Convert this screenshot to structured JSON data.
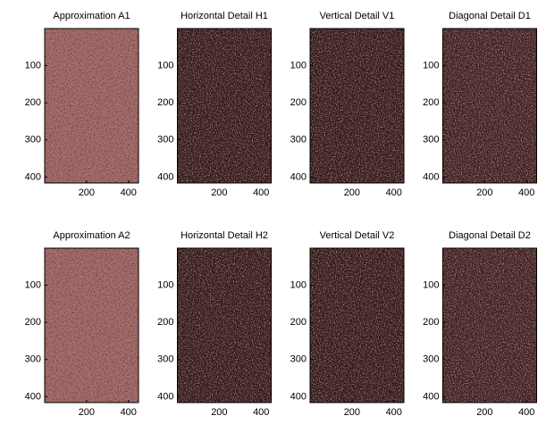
{
  "chart_data": [
    {
      "type": "image",
      "title": "Approximation A1",
      "color": "#9a6767",
      "xlim": [
        0,
        448
      ],
      "ylim": [
        0,
        416
      ],
      "y_reversed": true,
      "xticks": [
        200,
        400
      ],
      "yticks": [
        100,
        200,
        300,
        400
      ]
    },
    {
      "type": "image",
      "title": "Horizontal Detail H1",
      "color": "#2e1818",
      "xlim": [
        0,
        448
      ],
      "ylim": [
        0,
        416
      ],
      "y_reversed": true,
      "xticks": [
        200,
        400
      ],
      "yticks": [
        100,
        200,
        300,
        400
      ]
    },
    {
      "type": "image",
      "title": "Vertical Detail V1",
      "color": "#2e1818",
      "xlim": [
        0,
        448
      ],
      "ylim": [
        0,
        416
      ],
      "y_reversed": true,
      "xticks": [
        200,
        400
      ],
      "yticks": [
        100,
        200,
        300,
        400
      ]
    },
    {
      "type": "image",
      "title": "Diagonal Detail D1",
      "color": "#3a2020",
      "xlim": [
        0,
        448
      ],
      "ylim": [
        0,
        416
      ],
      "y_reversed": true,
      "xticks": [
        200,
        400
      ],
      "yticks": [
        100,
        200,
        300,
        400
      ]
    },
    {
      "type": "image",
      "title": "Approximation A2",
      "color": "#9a6767",
      "xlim": [
        0,
        448
      ],
      "ylim": [
        0,
        416
      ],
      "y_reversed": true,
      "xticks": [
        200,
        400
      ],
      "yticks": [
        100,
        200,
        300,
        400
      ]
    },
    {
      "type": "image",
      "title": "Horizontal Detail H2",
      "color": "#2e1818",
      "xlim": [
        0,
        448
      ],
      "ylim": [
        0,
        416
      ],
      "y_reversed": true,
      "xticks": [
        200,
        400
      ],
      "yticks": [
        100,
        200,
        300,
        400
      ]
    },
    {
      "type": "image",
      "title": "Vertical Detail V2",
      "color": "#2e1818",
      "xlim": [
        0,
        448
      ],
      "ylim": [
        0,
        416
      ],
      "y_reversed": true,
      "xticks": [
        200,
        400
      ],
      "yticks": [
        100,
        200,
        300,
        400
      ]
    },
    {
      "type": "image",
      "title": "Diagonal Detail D2",
      "color": "#3a2020",
      "xlim": [
        0,
        448
      ],
      "ylim": [
        0,
        416
      ],
      "y_reversed": true,
      "xticks": [
        200,
        400
      ],
      "yticks": [
        100,
        200,
        300,
        400
      ]
    }
  ]
}
